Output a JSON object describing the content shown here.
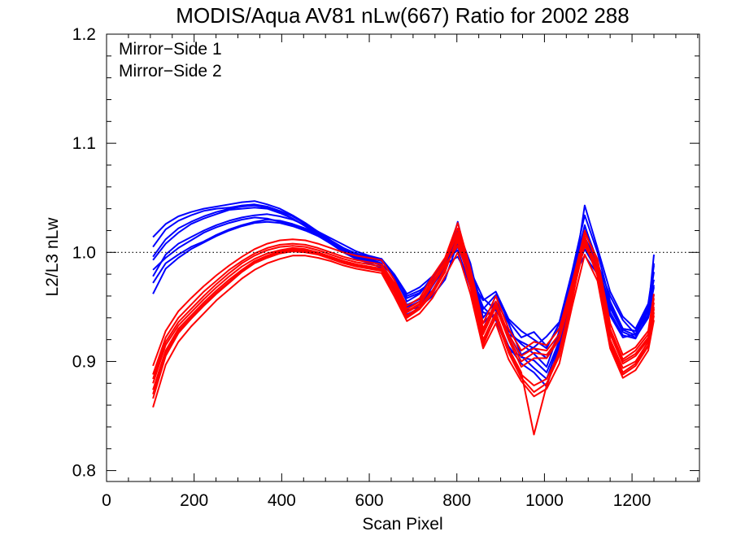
{
  "chart_data": {
    "type": "line",
    "title": "MODIS/Aqua AV81 nLw(667) Ratio for 2002 288",
    "xlabel": "Scan Pixel",
    "ylabel": "L2/L3 nLw",
    "xlim": [
      0,
      1354
    ],
    "ylim": [
      0.79,
      1.2
    ],
    "xticks": [
      {
        "value": 0,
        "label": "0"
      },
      {
        "value": 200,
        "label": "200"
      },
      {
        "value": 400,
        "label": "400"
      },
      {
        "value": 600,
        "label": "600"
      },
      {
        "value": 800,
        "label": "800"
      },
      {
        "value": 1000,
        "label": "1000"
      },
      {
        "value": 1200,
        "label": "1200"
      }
    ],
    "yticks": [
      {
        "value": 0.8,
        "label": "0.8"
      },
      {
        "value": 0.9,
        "label": "0.9"
      },
      {
        "value": 1.0,
        "label": "1.0"
      },
      {
        "value": 1.1,
        "label": "1.1"
      },
      {
        "value": 1.2,
        "label": "1.2"
      }
    ],
    "x_minor_step": 50,
    "y_minor_step": 0.02,
    "reference_line": {
      "y": 1.0,
      "style": "dotted"
    },
    "legend": {
      "placement": "top-left",
      "entries": [
        {
          "label": "Mirror−Side 1",
          "color": "#0000ff"
        },
        {
          "label": "Mirror−Side 2",
          "color": "#ff0000"
        }
      ]
    },
    "grid": false,
    "x": [
      106,
      135,
      164,
      193,
      222,
      251,
      280,
      309,
      338,
      367,
      396,
      425,
      454,
      483,
      512,
      541,
      570,
      599,
      628,
      657,
      686,
      715,
      744,
      773,
      802,
      831,
      860,
      889,
      918,
      947,
      976,
      1005,
      1034,
      1063,
      1092,
      1121,
      1150,
      1179,
      1208,
      1237,
      1250
    ],
    "series": [
      {
        "group": 1,
        "values": [
          0.984,
          0.995,
          1.004,
          1.011,
          1.018,
          1.023,
          1.027,
          1.03,
          1.032,
          1.031,
          1.028,
          1.025,
          1.021,
          1.015,
          1.008,
          1.001,
          0.995,
          0.991,
          0.989,
          0.978,
          0.955,
          0.962,
          0.978,
          0.993,
          1.002,
          0.968,
          0.935,
          0.948,
          0.925,
          0.918,
          0.912,
          0.903,
          0.925,
          0.978,
          1.009,
          0.985,
          0.942,
          0.922,
          0.925,
          0.948,
          0.982
        ]
      },
      {
        "group": 1,
        "values": [
          0.993,
          1.008,
          1.018,
          1.026,
          1.031,
          1.035,
          1.039,
          1.04,
          1.041,
          1.04,
          1.036,
          1.031,
          1.024,
          1.016,
          1.008,
          1.0,
          0.994,
          0.99,
          0.986,
          0.972,
          0.95,
          0.955,
          0.965,
          0.982,
          1.021,
          0.99,
          0.94,
          0.955,
          0.935,
          0.906,
          0.913,
          0.923,
          0.936,
          0.982,
          1.034,
          1.0,
          0.955,
          0.93,
          0.928,
          0.95,
          0.975
        ]
      },
      {
        "group": 1,
        "values": [
          1.005,
          1.021,
          1.029,
          1.034,
          1.038,
          1.04,
          1.041,
          1.043,
          1.044,
          1.042,
          1.038,
          1.033,
          1.026,
          1.018,
          1.01,
          1.003,
          0.997,
          0.993,
          0.989,
          0.969,
          0.947,
          0.95,
          0.96,
          0.975,
          1.009,
          0.978,
          0.95,
          0.938,
          0.91,
          0.905,
          0.894,
          0.884,
          0.917,
          0.97,
          1.014,
          0.99,
          0.96,
          0.938,
          0.925,
          0.948,
          0.99
        ]
      },
      {
        "group": 1,
        "values": [
          0.972,
          0.99,
          0.998,
          1.005,
          1.01,
          1.016,
          1.021,
          1.025,
          1.028,
          1.03,
          1.029,
          1.026,
          1.022,
          1.016,
          1.01,
          1.004,
          0.999,
          0.996,
          0.994,
          0.98,
          0.962,
          0.968,
          0.978,
          0.989,
          0.996,
          0.974,
          0.956,
          0.964,
          0.939,
          0.928,
          0.92,
          0.912,
          0.935,
          0.976,
          0.997,
          0.98,
          0.95,
          0.93,
          0.928,
          0.942,
          0.97
        ]
      },
      {
        "group": 1,
        "values": [
          1.014,
          1.026,
          1.033,
          1.037,
          1.04,
          1.042,
          1.044,
          1.046,
          1.047,
          1.044,
          1.04,
          1.034,
          1.027,
          1.019,
          1.011,
          1.004,
          0.998,
          0.994,
          0.99,
          0.966,
          0.943,
          0.949,
          0.969,
          0.987,
          1.028,
          0.98,
          0.945,
          0.942,
          0.914,
          0.898,
          0.89,
          0.877,
          0.914,
          0.965,
          1.043,
          1.004,
          0.964,
          0.941,
          0.93,
          0.953,
          0.988
        ]
      },
      {
        "group": 1,
        "values": [
          0.978,
          0.998,
          1.008,
          1.014,
          1.02,
          1.025,
          1.029,
          1.032,
          1.034,
          1.035,
          1.033,
          1.03,
          1.025,
          1.019,
          1.013,
          1.007,
          1.001,
          0.997,
          0.994,
          0.975,
          0.958,
          0.963,
          0.976,
          0.994,
          1.013,
          0.986,
          0.948,
          0.961,
          0.937,
          0.922,
          0.927,
          0.914,
          0.931,
          0.98,
          1.024,
          0.992,
          0.945,
          0.924,
          0.921,
          0.943,
          0.968
        ]
      },
      {
        "group": 1,
        "values": [
          0.996,
          1.012,
          1.022,
          1.028,
          1.033,
          1.037,
          1.04,
          1.042,
          1.043,
          1.041,
          1.037,
          1.031,
          1.024,
          1.017,
          1.009,
          1.002,
          0.996,
          0.992,
          0.988,
          0.971,
          0.952,
          0.957,
          0.97,
          0.985,
          1.017,
          0.972,
          0.93,
          0.95,
          0.925,
          0.904,
          0.901,
          0.89,
          0.919,
          0.972,
          1.025,
          0.989,
          0.952,
          0.929,
          0.924,
          0.946,
          0.998
        ]
      },
      {
        "group": 1,
        "values": [
          0.962,
          0.985,
          0.995,
          1.003,
          1.009,
          1.015,
          1.02,
          1.024,
          1.027,
          1.028,
          1.027,
          1.024,
          1.02,
          1.015,
          1.009,
          1.003,
          0.998,
          0.995,
          0.992,
          0.979,
          0.96,
          0.965,
          0.973,
          0.988,
          1.005,
          0.983,
          0.958,
          0.947,
          0.928,
          0.916,
          0.907,
          0.895,
          0.928,
          0.974,
          1.003,
          0.983,
          0.949,
          0.927,
          0.922,
          0.94,
          0.961
        ]
      },
      {
        "group": 2,
        "values": [
          0.88,
          0.915,
          0.933,
          0.945,
          0.957,
          0.968,
          0.978,
          0.987,
          0.994,
          0.999,
          1.002,
          1.004,
          1.003,
          1.0,
          0.996,
          0.992,
          0.989,
          0.987,
          0.985,
          0.968,
          0.945,
          0.952,
          0.97,
          0.988,
          1.006,
          0.975,
          0.925,
          0.95,
          0.92,
          0.895,
          0.903,
          0.903,
          0.92,
          0.962,
          1.006,
          0.984,
          0.925,
          0.898,
          0.905,
          0.92,
          0.95
        ]
      },
      {
        "group": 2,
        "values": [
          0.866,
          0.905,
          0.926,
          0.939,
          0.951,
          0.962,
          0.972,
          0.982,
          0.99,
          0.995,
          0.999,
          1.001,
          1.0,
          0.998,
          0.994,
          0.99,
          0.987,
          0.985,
          0.983,
          0.963,
          0.94,
          0.948,
          0.962,
          0.982,
          1.015,
          0.97,
          0.918,
          0.94,
          0.908,
          0.885,
          0.872,
          0.88,
          0.905,
          0.955,
          1.015,
          0.98,
          0.918,
          0.89,
          0.898,
          0.915,
          0.945
        ]
      },
      {
        "group": 2,
        "values": [
          0.888,
          0.922,
          0.94,
          0.952,
          0.964,
          0.974,
          0.984,
          0.992,
          0.999,
          1.004,
          1.007,
          1.008,
          1.007,
          1.004,
          1.0,
          0.996,
          0.993,
          0.991,
          0.989,
          0.972,
          0.948,
          0.955,
          0.975,
          0.992,
          1.022,
          0.98,
          0.93,
          0.955,
          0.925,
          0.905,
          0.912,
          0.91,
          0.925,
          0.968,
          1.02,
          0.99,
          0.93,
          0.902,
          0.91,
          0.925,
          0.958
        ]
      },
      {
        "group": 2,
        "values": [
          0.858,
          0.897,
          0.918,
          0.932,
          0.944,
          0.956,
          0.966,
          0.976,
          0.984,
          0.99,
          0.994,
          0.997,
          0.997,
          0.995,
          0.992,
          0.988,
          0.985,
          0.983,
          0.981,
          0.96,
          0.937,
          0.944,
          0.958,
          0.978,
          1.0,
          0.962,
          0.912,
          0.935,
          0.902,
          0.882,
          0.868,
          0.875,
          0.898,
          0.95,
          0.998,
          0.974,
          0.912,
          0.885,
          0.892,
          0.91,
          0.938
        ]
      },
      {
        "group": 2,
        "values": [
          0.896,
          0.928,
          0.946,
          0.958,
          0.969,
          0.979,
          0.988,
          0.996,
          1.003,
          1.008,
          1.011,
          1.012,
          1.011,
          1.008,
          1.004,
          1.0,
          0.997,
          0.995,
          0.993,
          0.975,
          0.951,
          0.958,
          0.978,
          0.995,
          1.027,
          0.985,
          0.935,
          0.96,
          0.93,
          0.91,
          0.918,
          0.915,
          0.93,
          0.972,
          1.018,
          0.994,
          0.935,
          0.906,
          0.913,
          0.928,
          0.962
        ]
      },
      {
        "group": 2,
        "values": [
          0.874,
          0.91,
          0.93,
          0.942,
          0.954,
          0.965,
          0.975,
          0.984,
          0.992,
          0.997,
          1.001,
          1.003,
          1.002,
          1.0,
          0.996,
          0.992,
          0.989,
          0.987,
          0.985,
          0.965,
          0.942,
          0.95,
          0.965,
          0.985,
          1.01,
          0.972,
          0.92,
          0.945,
          0.912,
          0.89,
          0.833,
          0.878,
          0.91,
          0.958,
          1.008,
          0.982,
          0.92,
          0.894,
          0.9,
          0.918,
          0.948
        ]
      },
      {
        "group": 2,
        "values": [
          0.884,
          0.918,
          0.936,
          0.948,
          0.96,
          0.971,
          0.981,
          0.99,
          0.997,
          1.002,
          1.005,
          1.006,
          1.005,
          1.002,
          0.998,
          0.994,
          0.991,
          0.989,
          0.987,
          0.97,
          0.946,
          0.953,
          0.972,
          0.99,
          1.018,
          0.978,
          0.928,
          0.952,
          0.922,
          0.9,
          0.908,
          0.906,
          0.922,
          0.965,
          1.012,
          0.987,
          0.928,
          0.9,
          0.907,
          0.922,
          0.954
        ]
      },
      {
        "group": 2,
        "values": [
          0.87,
          0.908,
          0.928,
          0.94,
          0.952,
          0.963,
          0.973,
          0.983,
          0.991,
          0.996,
          1.0,
          1.002,
          1.001,
          0.999,
          0.995,
          0.991,
          0.988,
          0.986,
          0.984,
          0.964,
          0.941,
          0.949,
          0.964,
          0.984,
          1.012,
          0.968,
          0.915,
          0.942,
          0.91,
          0.888,
          0.878,
          0.884,
          0.908,
          0.957,
          1.01,
          0.978,
          0.915,
          0.888,
          0.896,
          0.914,
          0.942
        ]
      }
    ]
  }
}
